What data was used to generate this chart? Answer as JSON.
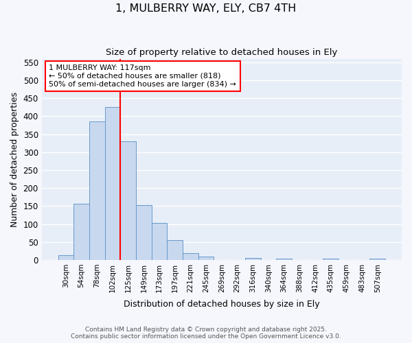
{
  "title": "1, MULBERRY WAY, ELY, CB7 4TH",
  "subtitle": "Size of property relative to detached houses in Ely",
  "xlabel": "Distribution of detached houses by size in Ely",
  "ylabel": "Number of detached properties",
  "bar_color": "#c8d8ee",
  "bar_edge_color": "#6699cc",
  "background_color": "#e8eef8",
  "fig_background": "#f5f7fd",
  "grid_color": "#ffffff",
  "categories": [
    "30sqm",
    "54sqm",
    "78sqm",
    "102sqm",
    "125sqm",
    "149sqm",
    "173sqm",
    "197sqm",
    "221sqm",
    "245sqm",
    "269sqm",
    "292sqm",
    "316sqm",
    "340sqm",
    "364sqm",
    "388sqm",
    "412sqm",
    "435sqm",
    "459sqm",
    "483sqm",
    "507sqm"
  ],
  "values": [
    13,
    157,
    386,
    425,
    330,
    153,
    102,
    56,
    18,
    10,
    0,
    0,
    5,
    0,
    4,
    0,
    0,
    3,
    0,
    0,
    4
  ],
  "ylim": [
    0,
    560
  ],
  "yticks": [
    0,
    50,
    100,
    150,
    200,
    250,
    300,
    350,
    400,
    450,
    500,
    550
  ],
  "red_line_index": 4,
  "annotation_line1": "1 MULBERRY WAY: 117sqm",
  "annotation_line2": "← 50% of detached houses are smaller (818)",
  "annotation_line3": "50% of semi-detached houses are larger (834) →",
  "footer_line1": "Contains HM Land Registry data © Crown copyright and database right 2025.",
  "footer_line2": "Contains public sector information licensed under the Open Government Licence v3.0."
}
